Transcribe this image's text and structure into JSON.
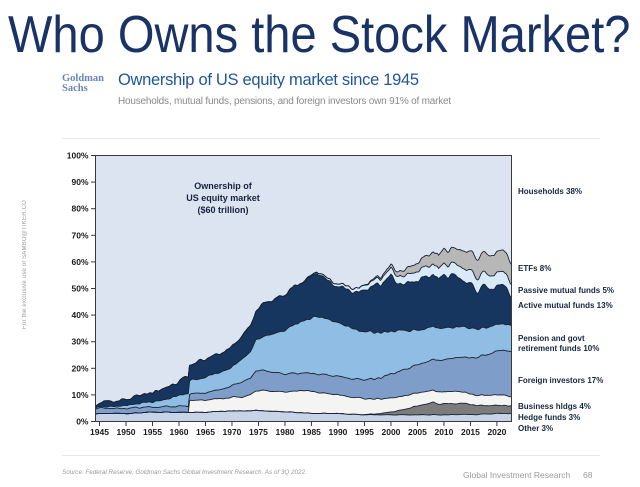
{
  "slide": {
    "title": "Who Owns the Stock Market?",
    "source_note": "Source: Federal Reserve, Goldman Sachs Global Investment Research. As of 3Q 2022.",
    "footer_right": "Global Investment Research",
    "page_number": "68",
    "sidebar_note": "For the exclusive use of SAMBO@TIKER.CO"
  },
  "logo": {
    "line1": "Goldman",
    "line2": "Sachs"
  },
  "header": {
    "heading": "Ownership of US equity market since 1945",
    "subheading": "Households, mutual funds, pensions, and foreign investors own 91% of market"
  },
  "annotation": "Ownership of\nUS equity market\n($60 trillion)",
  "chart_data": {
    "type": "area",
    "stacked": true,
    "x_range": [
      1945,
      2022.75
    ],
    "ylim": [
      0,
      100
    ],
    "grid": false,
    "x_ticks": [
      1945,
      1950,
      1955,
      1960,
      1965,
      1970,
      1975,
      1980,
      1985,
      1990,
      1995,
      2000,
      2005,
      2010,
      2015,
      2020
    ],
    "y_ticks": [
      0,
      10,
      20,
      30,
      40,
      50,
      60,
      70,
      80,
      90,
      100
    ],
    "axis_color": "#3a3a3a",
    "outline_color": "#182232",
    "background_series": {
      "name": "Households",
      "label": "Households 38%",
      "color": "#dce4f1"
    },
    "anchor_years": [
      1945,
      1948,
      1950,
      1952,
      1955,
      1958,
      1960,
      1961.9,
      1962,
      1964,
      1966,
      1968,
      1970,
      1972,
      1973.5,
      1974.5,
      1976,
      1978,
      1980,
      1982,
      1984,
      1986,
      1988,
      1990,
      1992,
      1994,
      1996,
      1998,
      2000,
      2002,
      2004,
      2006,
      2008,
      2009,
      2010,
      2012,
      2014,
      2016,
      2018,
      2020,
      2021.25,
      2022.75
    ],
    "series": [
      {
        "name": "Other",
        "label": "Other 3%",
        "color": "#c6d3e8",
        "noise": 0.15,
        "values": [
          3.0,
          3.0,
          3.0,
          3.2,
          3.5,
          3.5,
          3.5,
          3.5,
          3.5,
          3.5,
          3.6,
          3.8,
          4.0,
          4.0,
          4.0,
          4.2,
          4.0,
          3.8,
          3.6,
          3.4,
          3.2,
          3.0,
          3.0,
          3.0,
          2.8,
          2.6,
          2.5,
          2.5,
          2.5,
          2.5,
          2.5,
          2.5,
          2.5,
          2.5,
          2.5,
          2.6,
          2.7,
          2.6,
          2.8,
          3.0,
          3.0,
          3.0
        ]
      },
      {
        "name": "Hedge funds",
        "label": "Hedge funds 3%",
        "color": "#7c7c7c",
        "noise": 0.2,
        "values": [
          0,
          0,
          0,
          0,
          0,
          0,
          0,
          0,
          0,
          0,
          0,
          0,
          0,
          0,
          0,
          0,
          0,
          0,
          0,
          0,
          0,
          0,
          0,
          0,
          0,
          0,
          0.2,
          0.5,
          1.0,
          1.8,
          2.8,
          3.8,
          4.8,
          4.0,
          4.2,
          4.2,
          4.2,
          3.4,
          3.2,
          3.0,
          3.0,
          2.8
        ]
      },
      {
        "name": "Business hldgs",
        "label": "Business hldgs 4%",
        "color": "#f4f4f2",
        "noise": 0.3,
        "values": [
          0,
          0,
          0,
          0,
          0,
          0,
          0,
          0,
          4.5,
          4.5,
          4.6,
          4.8,
          5.0,
          5.2,
          6.2,
          7.2,
          7.8,
          7.6,
          7.5,
          8.0,
          8.4,
          8.0,
          7.4,
          7.0,
          6.6,
          6.2,
          5.8,
          5.5,
          5.2,
          5.0,
          5.0,
          4.8,
          4.6,
          4.6,
          4.6,
          4.5,
          4.1,
          3.8,
          3.8,
          3.8,
          3.8,
          3.6
        ]
      },
      {
        "name": "Foreign investors",
        "label": "Foreign investors 17%",
        "color": "#7e9dc8",
        "noise": 0.3,
        "values": [
          2.0,
          2.0,
          2.0,
          2.0,
          2.0,
          2.1,
          2.2,
          2.3,
          2.4,
          2.6,
          2.9,
          3.5,
          4.4,
          5.8,
          6.3,
          7.5,
          7.4,
          7.0,
          6.6,
          6.6,
          6.6,
          6.9,
          7.0,
          7.0,
          6.9,
          7.0,
          7.3,
          8.0,
          9.0,
          9.6,
          10.4,
          11.0,
          11.5,
          12.0,
          12.2,
          12.6,
          13.2,
          14.2,
          15.2,
          16.5,
          16.8,
          17.0
        ]
      },
      {
        "name": "Pension and govt retirement funds",
        "label": "Pension and govt retirement funds 10%",
        "color": "#8fbde4",
        "noise": 0.45,
        "values": [
          0.5,
          0.8,
          1.0,
          1.4,
          2.0,
          3.0,
          4.0,
          4.8,
          5.0,
          5.6,
          6.2,
          6.6,
          7.0,
          8.5,
          10.0,
          11.5,
          13.0,
          14.5,
          16.5,
          18.5,
          20.0,
          21.5,
          21.0,
          20.0,
          19.5,
          18.0,
          18.0,
          17.0,
          16.0,
          15.0,
          13.5,
          12.8,
          12.3,
          12.0,
          12.0,
          11.6,
          11.4,
          10.8,
          10.2,
          10.0,
          9.9,
          9.5
        ]
      },
      {
        "name": "Active mutual funds",
        "label": "Active mutual funds 13%",
        "color": "#16365f",
        "noise": 0.75,
        "values": [
          1.5,
          1.8,
          2.0,
          2.6,
          3.5,
          4.5,
          5.5,
          6.0,
          6.0,
          6.5,
          7.0,
          7.2,
          7.5,
          9.0,
          10.0,
          11.0,
          12.5,
          13.0,
          13.5,
          14.0,
          15.0,
          16.5,
          14.5,
          13.5,
          14.0,
          14.5,
          16.5,
          18.0,
          21.0,
          17.0,
          18.5,
          18.5,
          19.5,
          17.0,
          20.0,
          19.0,
          17.5,
          15.5,
          14.5,
          13.5,
          14.0,
          12.6
        ]
      },
      {
        "name": "Passive mutual funds",
        "label": "Passive mutual funds 5%",
        "color": "#d8e9f8",
        "noise": 0.15,
        "values": [
          0,
          0,
          0,
          0,
          0,
          0,
          0,
          0,
          0,
          0,
          0,
          0,
          0,
          0,
          0,
          0,
          0,
          0,
          0,
          0,
          0.3,
          0.5,
          0.8,
          1.0,
          1.3,
          1.6,
          2.0,
          2.3,
          2.6,
          2.9,
          3.3,
          3.7,
          4.0,
          4.0,
          4.2,
          4.4,
          4.8,
          5.0,
          5.0,
          5.0,
          5.0,
          4.8
        ]
      },
      {
        "name": "ETFs",
        "label": "ETFs 8%",
        "color": "#b7b7b7",
        "noise": 0.15,
        "values": [
          0,
          0,
          0,
          0,
          0,
          0,
          0,
          0,
          0,
          0,
          0,
          0,
          0,
          0,
          0,
          0,
          0,
          0,
          0,
          0,
          0,
          0,
          0,
          0,
          0,
          0,
          0.3,
          0.7,
          1.2,
          2.0,
          2.8,
          3.6,
          4.6,
          5.0,
          5.4,
          5.6,
          6.8,
          7.4,
          7.4,
          7.8,
          8.0,
          7.6
        ]
      }
    ]
  }
}
